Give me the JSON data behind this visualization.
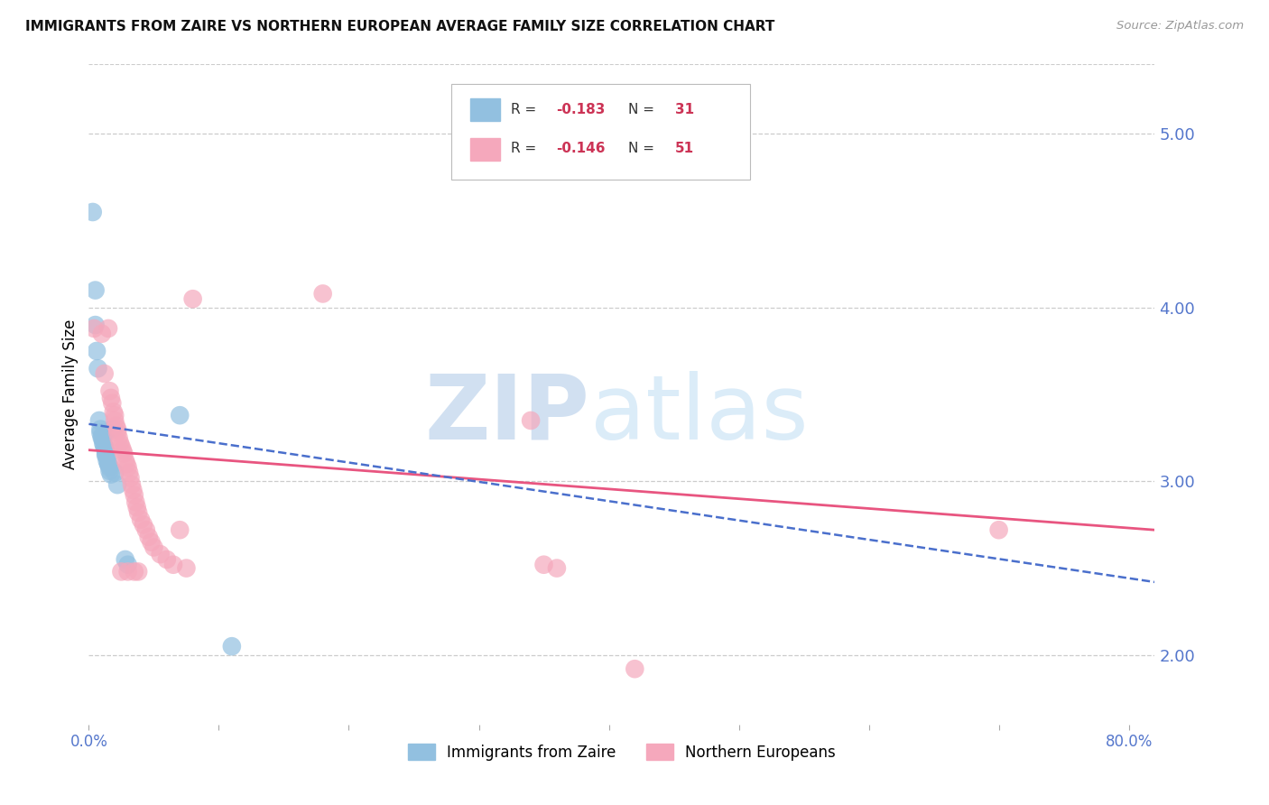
{
  "title": "IMMIGRANTS FROM ZAIRE VS NORTHERN EUROPEAN AVERAGE FAMILY SIZE CORRELATION CHART",
  "source": "Source: ZipAtlas.com",
  "ylabel": "Average Family Size",
  "right_yticks": [
    2.0,
    3.0,
    4.0,
    5.0
  ],
  "background_color": "#ffffff",
  "zaire_color": "#92c0e0",
  "northern_color": "#f5a8bc",
  "zaire_line_color": "#4a6fcc",
  "northern_line_color": "#e85580",
  "zaire_scatter": [
    [
      0.003,
      4.55
    ],
    [
      0.005,
      4.1
    ],
    [
      0.005,
      3.9
    ],
    [
      0.006,
      3.75
    ],
    [
      0.007,
      3.65
    ],
    [
      0.008,
      3.35
    ],
    [
      0.009,
      3.3
    ],
    [
      0.009,
      3.28
    ],
    [
      0.01,
      3.26
    ],
    [
      0.01,
      3.25
    ],
    [
      0.011,
      3.24
    ],
    [
      0.011,
      3.22
    ],
    [
      0.012,
      3.2
    ],
    [
      0.012,
      3.2
    ],
    [
      0.013,
      3.18
    ],
    [
      0.013,
      3.16
    ],
    [
      0.013,
      3.15
    ],
    [
      0.014,
      3.14
    ],
    [
      0.014,
      3.12
    ],
    [
      0.015,
      3.1
    ],
    [
      0.015,
      3.1
    ],
    [
      0.016,
      3.08
    ],
    [
      0.016,
      3.06
    ],
    [
      0.017,
      3.04
    ],
    [
      0.018,
      3.3
    ],
    [
      0.02,
      3.05
    ],
    [
      0.022,
      2.98
    ],
    [
      0.028,
      2.55
    ],
    [
      0.03,
      2.52
    ],
    [
      0.07,
      3.38
    ],
    [
      0.11,
      2.05
    ]
  ],
  "northern_scatter": [
    [
      0.004,
      3.88
    ],
    [
      0.01,
      3.85
    ],
    [
      0.012,
      3.62
    ],
    [
      0.015,
      3.88
    ],
    [
      0.016,
      3.52
    ],
    [
      0.017,
      3.48
    ],
    [
      0.018,
      3.45
    ],
    [
      0.019,
      3.4
    ],
    [
      0.02,
      3.38
    ],
    [
      0.02,
      3.35
    ],
    [
      0.021,
      3.32
    ],
    [
      0.022,
      3.3
    ],
    [
      0.022,
      3.28
    ],
    [
      0.023,
      3.25
    ],
    [
      0.024,
      3.22
    ],
    [
      0.025,
      3.2
    ],
    [
      0.026,
      3.18
    ],
    [
      0.027,
      3.16
    ],
    [
      0.028,
      3.12
    ],
    [
      0.029,
      3.1
    ],
    [
      0.03,
      3.08
    ],
    [
      0.031,
      3.05
    ],
    [
      0.032,
      3.02
    ],
    [
      0.033,
      2.98
    ],
    [
      0.034,
      2.95
    ],
    [
      0.035,
      2.92
    ],
    [
      0.036,
      2.88
    ],
    [
      0.037,
      2.85
    ],
    [
      0.038,
      2.82
    ],
    [
      0.04,
      2.78
    ],
    [
      0.042,
      2.75
    ],
    [
      0.044,
      2.72
    ],
    [
      0.046,
      2.68
    ],
    [
      0.048,
      2.65
    ],
    [
      0.05,
      2.62
    ],
    [
      0.055,
      2.58
    ],
    [
      0.06,
      2.55
    ],
    [
      0.065,
      2.52
    ],
    [
      0.07,
      2.72
    ],
    [
      0.075,
      2.5
    ],
    [
      0.08,
      4.05
    ],
    [
      0.03,
      2.48
    ],
    [
      0.025,
      2.48
    ],
    [
      0.035,
      2.48
    ],
    [
      0.038,
      2.48
    ],
    [
      0.18,
      4.08
    ],
    [
      0.34,
      3.35
    ],
    [
      0.35,
      2.52
    ],
    [
      0.36,
      2.5
    ],
    [
      0.42,
      1.92
    ],
    [
      0.7,
      2.72
    ]
  ],
  "xlim": [
    0.0,
    0.82
  ],
  "ylim": [
    1.6,
    5.4
  ],
  "zaire_trend_x": [
    0.0,
    0.82
  ],
  "zaire_trend_y": [
    3.33,
    2.42
  ],
  "northern_trend_x": [
    0.0,
    0.82
  ],
  "northern_trend_y": [
    3.18,
    2.72
  ]
}
